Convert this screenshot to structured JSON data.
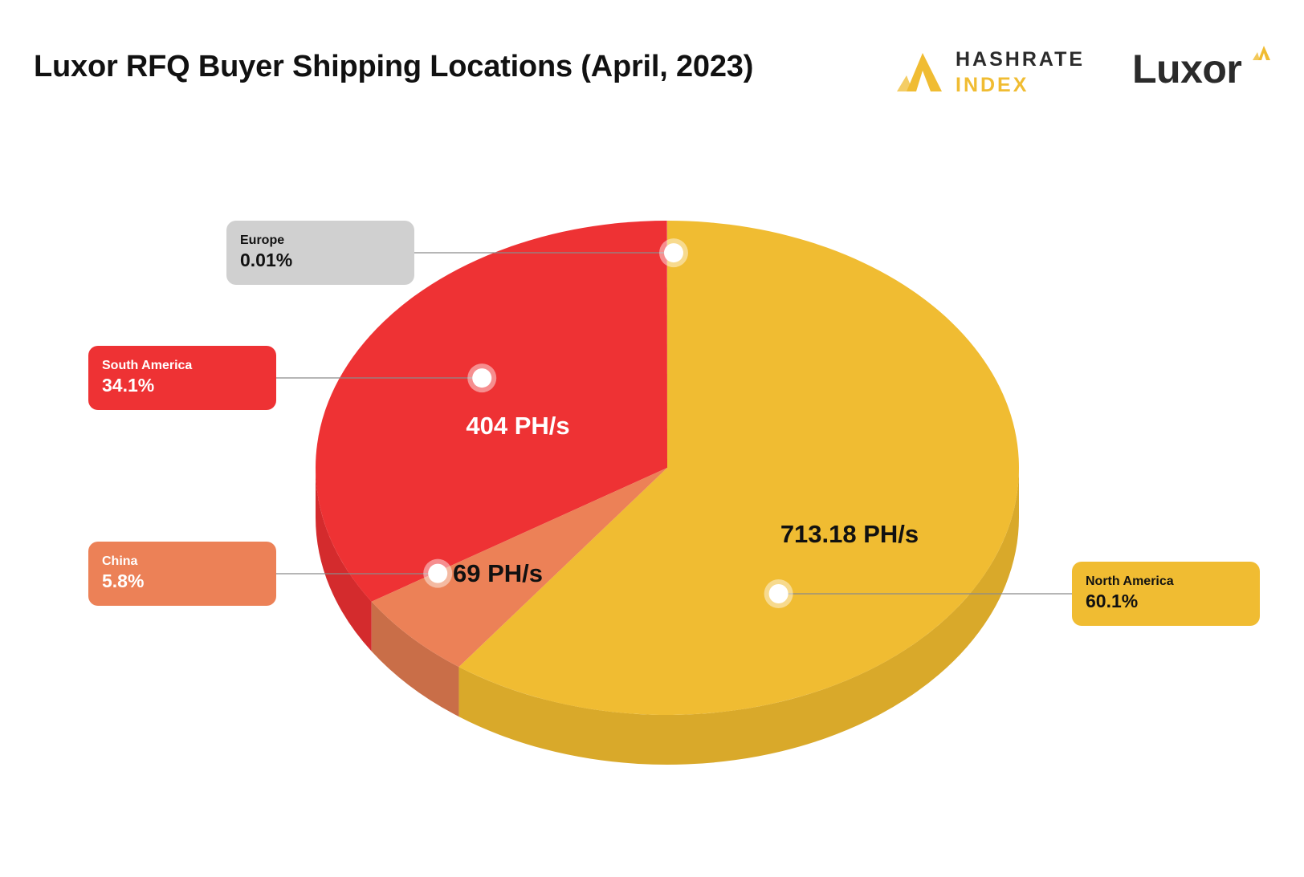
{
  "title": "Luxor RFQ Buyer Shipping Locations (April, 2023)",
  "logos": {
    "hashrate_index": {
      "line1": "HASHRATE",
      "line2": "INDEX"
    },
    "luxor": {
      "word": "Luxor"
    }
  },
  "colors": {
    "north_america": "#F0BC32",
    "north_america_side": "#D9A92A",
    "south_america": "#EE3234",
    "south_america_side": "#D42B2D",
    "china": "#EC8157",
    "china_side": "#C96E48",
    "europe_box": "#D0D0D0",
    "brand_yellow": "#F0BC32",
    "dark_text": "#111111"
  },
  "chart_data": {
    "type": "pie",
    "title": "Luxor RFQ Buyer Shipping Locations (April, 2023)",
    "style": "3d",
    "slices": [
      {
        "name": "North America",
        "percent": "60.1%",
        "value_label": "713.18 PH/s",
        "value": 60.1
      },
      {
        "name": "China",
        "percent": "5.8%",
        "value_label": "69 PH/s",
        "value": 5.8
      },
      {
        "name": "South America",
        "percent": "34.1%",
        "value_label": "404 PH/s",
        "value": 34.1
      },
      {
        "name": "Europe",
        "percent": "0.01%",
        "value_label": "",
        "value": 0.01
      }
    ]
  }
}
